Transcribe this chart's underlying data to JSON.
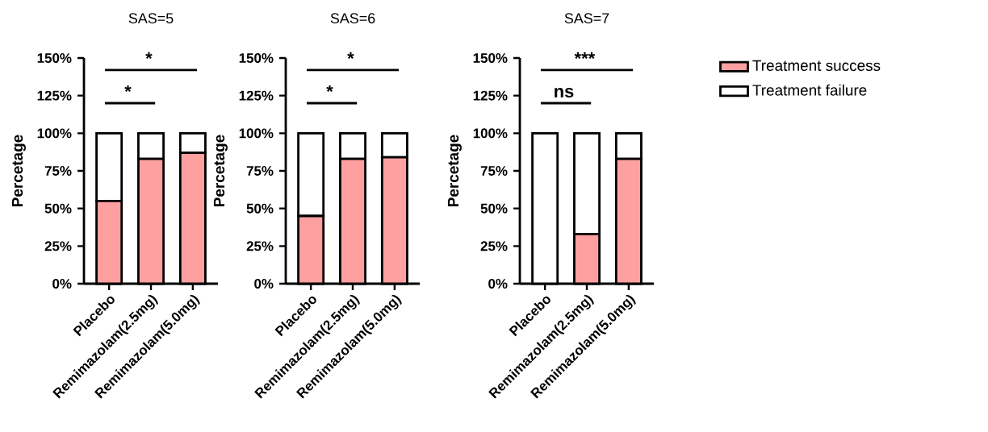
{
  "chart_data": [
    {
      "type": "bar",
      "title": "SAS=5",
      "ylabel": "Percetage",
      "categories": [
        "Placebo",
        "Remimazolam(2.5mg)",
        "Remimazolam(5.0mg)"
      ],
      "stacked": true,
      "ylim": [
        0,
        150
      ],
      "yticks": [
        {
          "value": 0,
          "label": "0%"
        },
        {
          "value": 25,
          "label": "25%"
        },
        {
          "value": 50,
          "label": "50%"
        },
        {
          "value": 75,
          "label": "75%"
        },
        {
          "value": 100,
          "label": "100%"
        },
        {
          "value": 125,
          "label": "125%"
        },
        {
          "value": 150,
          "label": "150%"
        }
      ],
      "series": [
        {
          "color": "#ffa0a0",
          "values": [
            55,
            83,
            87
          ]
        },
        {
          "color": "#ffffff",
          "values": [
            45,
            17,
            13
          ]
        }
      ],
      "annotations": [
        "*",
        "*"
      ]
    },
    {
      "type": "bar",
      "title": "SAS=6",
      "ylabel": "Percetage",
      "categories": [
        "Placebo",
        "Remimazolam(2.5mg)",
        "Remimazolam(5.0mg)"
      ],
      "stacked": true,
      "ylim": [
        0,
        150
      ],
      "yticks": [
        {
          "value": 0,
          "label": "0%"
        },
        {
          "value": 25,
          "label": "25%"
        },
        {
          "value": 50,
          "label": "50%"
        },
        {
          "value": 75,
          "label": "75%"
        },
        {
          "value": 100,
          "label": "100%"
        },
        {
          "value": 125,
          "label": "125%"
        },
        {
          "value": 150,
          "label": "150%"
        }
      ],
      "series": [
        {
          "color": "#ffa0a0",
          "values": [
            45,
            83,
            84
          ]
        },
        {
          "color": "#ffffff",
          "values": [
            55,
            17,
            16
          ]
        }
      ],
      "annotations": [
        "*",
        "*"
      ]
    },
    {
      "type": "bar",
      "title": "SAS=7",
      "ylabel": "Percetage",
      "categories": [
        "Placebo",
        "Remimazolam(2.5mg)",
        "Remimazolam(5.0mg)"
      ],
      "stacked": true,
      "ylim": [
        0,
        150
      ],
      "yticks": [
        {
          "value": 0,
          "label": "0%"
        },
        {
          "value": 25,
          "label": "25%"
        },
        {
          "value": 50,
          "label": "50%"
        },
        {
          "value": 75,
          "label": "75%"
        },
        {
          "value": 100,
          "label": "100%"
        },
        {
          "value": 125,
          "label": "125%"
        },
        {
          "value": 150,
          "label": "150%"
        }
      ],
      "legend": "right",
      "series": [
        {
          "name": "Treatment success",
          "color": "#ffa0a0",
          "values": [
            0,
            33,
            83
          ]
        },
        {
          "name": "Treatment failure",
          "color": "#ffffff",
          "values": [
            100,
            67,
            17
          ]
        }
      ],
      "annotations": [
        "ns",
        "***"
      ]
    }
  ]
}
